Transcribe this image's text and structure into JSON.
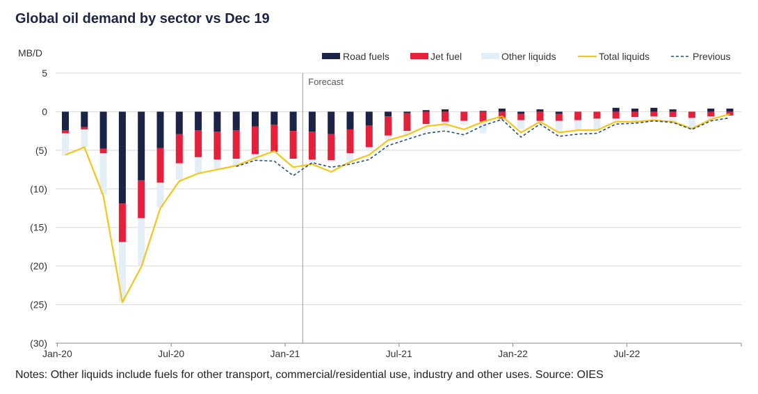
{
  "title": "Global oil demand by sector vs Dec 19",
  "note": "Notes: Other liquids include fuels for other transport, commercial/residential use, industry and other uses. Source: OIES",
  "chart_data": {
    "type": "bar",
    "ylabel": "MB/D",
    "ylim": [
      -30,
      5
    ],
    "y_ticks": [
      5,
      0,
      -5,
      -10,
      -15,
      -20,
      -25,
      -30
    ],
    "y_tick_labels": [
      "5",
      "0",
      "(5)",
      "(10)",
      "(15)",
      "(20)",
      "(25)",
      "(30)"
    ],
    "x_tick_labels": [
      "Jan-20",
      "Jul-20",
      "Jan-21",
      "Jul-21",
      "Jan-22",
      "Jul-22"
    ],
    "x_tick_month_index": [
      0,
      6,
      12,
      18,
      24,
      30
    ],
    "annotation": "Forecast",
    "annotation_month_index": 12.5,
    "legend_position": "top-right",
    "months": [
      "Jan-20",
      "Feb-20",
      "Mar-20",
      "Apr-20",
      "May-20",
      "Jun-20",
      "Jul-20",
      "Aug-20",
      "Sep-20",
      "Oct-20",
      "Nov-20",
      "Dec-20",
      "Jan-21",
      "Feb-21",
      "Mar-21",
      "Apr-21",
      "May-21",
      "Jun-21",
      "Jul-21",
      "Aug-21",
      "Sep-21",
      "Oct-21",
      "Nov-21",
      "Dec-21",
      "Jan-22",
      "Feb-22",
      "Mar-22",
      "Apr-22",
      "May-22",
      "Jun-22",
      "Jul-22",
      "Aug-22",
      "Sep-22",
      "Oct-22",
      "Nov-22",
      "Dec-22"
    ],
    "series": [
      {
        "name": "Road fuels",
        "kind": "bar",
        "color": "#1b2447",
        "values": [
          -2.4,
          -2.0,
          -4.8,
          -11.9,
          -8.9,
          -4.7,
          -2.9,
          -2.4,
          -2.6,
          -2.4,
          -1.9,
          -1.7,
          -2.5,
          -2.6,
          -2.9,
          -2.3,
          -1.8,
          -0.6,
          -0.2,
          0.2,
          0.3,
          0,
          0.1,
          0.4,
          -0.3,
          0.3,
          -0.3,
          0,
          0,
          0.5,
          0.4,
          0.5,
          0.3,
          0,
          0.4,
          0.4
        ]
      },
      {
        "name": "Jet fuel",
        "kind": "bar",
        "color": "#e4203a",
        "values": [
          -0.4,
          -0.3,
          -0.6,
          -5.0,
          -4.9,
          -4.5,
          -3.8,
          -3.5,
          -3.6,
          -3.7,
          -3.6,
          -3.5,
          -3.6,
          -3.6,
          -3.4,
          -3.1,
          -2.8,
          -2.5,
          -2.3,
          -1.6,
          -1.3,
          -1.2,
          -1.3,
          -0.9,
          -0.8,
          -1.2,
          -0.9,
          -1.1,
          -0.9,
          -0.9,
          -0.7,
          -0.6,
          -0.7,
          -0.8,
          -0.6,
          -0.5
        ]
      },
      {
        "name": "Other liquids",
        "kind": "bar",
        "color": "#e4eef6",
        "values": [
          -2.9,
          -2.3,
          -5.3,
          -7.7,
          -6.2,
          -3.2,
          -2.1,
          -2.0,
          -1.2,
          -0.9,
          -0.6,
          -0.1,
          0,
          -0.3,
          -0.2,
          -1.0,
          -0.3,
          -0.6,
          -0.5,
          -0.2,
          -0.8,
          -0.5,
          -1.5,
          -0.3,
          -1.1,
          -0.4,
          -1.5,
          -1.2,
          -1.4,
          -0.3,
          -0.7,
          -0.6,
          -0.7,
          -1.3,
          -0.4,
          -0.1
        ]
      },
      {
        "name": "Total liquids",
        "kind": "line",
        "color": "#f5c518",
        "values": [
          -5.6,
          -4.6,
          -10.9,
          -24.7,
          -20.1,
          -12.5,
          -9.0,
          -8.0,
          -7.5,
          -7.0,
          -6.0,
          -5.1,
          -7.2,
          -6.8,
          -7.8,
          -6.5,
          -5.6,
          -3.7,
          -3.0,
          -1.9,
          -1.6,
          -2.3,
          -1.3,
          -0.6,
          -2.7,
          -1.3,
          -2.7,
          -2.4,
          -2.4,
          -1.3,
          -1.3,
          -1.1,
          -1.3,
          -2.2,
          -1.0,
          -0.3
        ]
      },
      {
        "name": "Previous",
        "kind": "dashed-line",
        "color": "#1f4e79",
        "values": [
          null,
          null,
          null,
          null,
          null,
          null,
          null,
          null,
          null,
          -7.1,
          -6.3,
          -6.4,
          -8.3,
          -6.6,
          -7.2,
          -6.8,
          -6.2,
          -4.4,
          -3.6,
          -2.8,
          -2.5,
          -3.0,
          -1.8,
          -1.0,
          -3.3,
          -1.6,
          -3.2,
          -2.9,
          -2.8,
          -1.6,
          -1.5,
          -1.2,
          -1.4,
          -2.3,
          -1.2,
          -0.8
        ]
      }
    ]
  }
}
